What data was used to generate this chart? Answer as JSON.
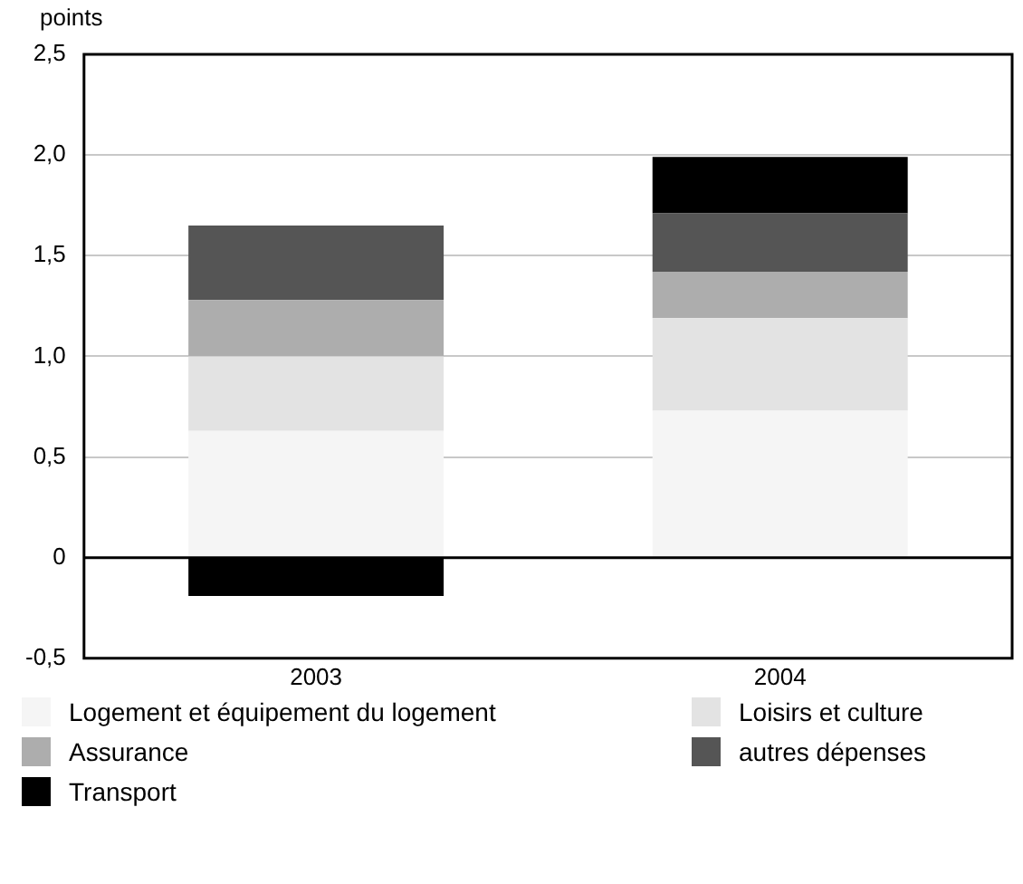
{
  "chart_data": {
    "type": "bar",
    "stacked": true,
    "ylabel": "points",
    "categories": [
      "2003",
      "2004"
    ],
    "series": [
      {
        "name": "Logement et équipement du logement",
        "color": "#f5f5f5",
        "values": [
          0.63,
          0.73
        ]
      },
      {
        "name": "Loisirs et culture",
        "color": "#e3e3e3",
        "values": [
          0.37,
          0.46
        ]
      },
      {
        "name": "Assurance",
        "color": "#adadad",
        "values": [
          0.28,
          0.23
        ]
      },
      {
        "name": "autres dépenses",
        "color": "#555555",
        "values": [
          0.37,
          0.29
        ]
      },
      {
        "name": "Transport",
        "color": "#000000",
        "values": [
          -0.19,
          0.28
        ]
      }
    ],
    "ylim": [
      -0.5,
      2.5
    ],
    "yticks": [
      {
        "value": -0.5,
        "label": "-0,5"
      },
      0,
      {
        "value": 0.5,
        "label": "0,5"
      },
      {
        "value": 1,
        "label": "1,0"
      },
      {
        "value": 1.5,
        "label": "1,5"
      },
      {
        "value": 2,
        "label": "2,0"
      },
      {
        "value": 2.5,
        "label": "2,5"
      }
    ],
    "grid": "y",
    "legend": "bottom"
  }
}
